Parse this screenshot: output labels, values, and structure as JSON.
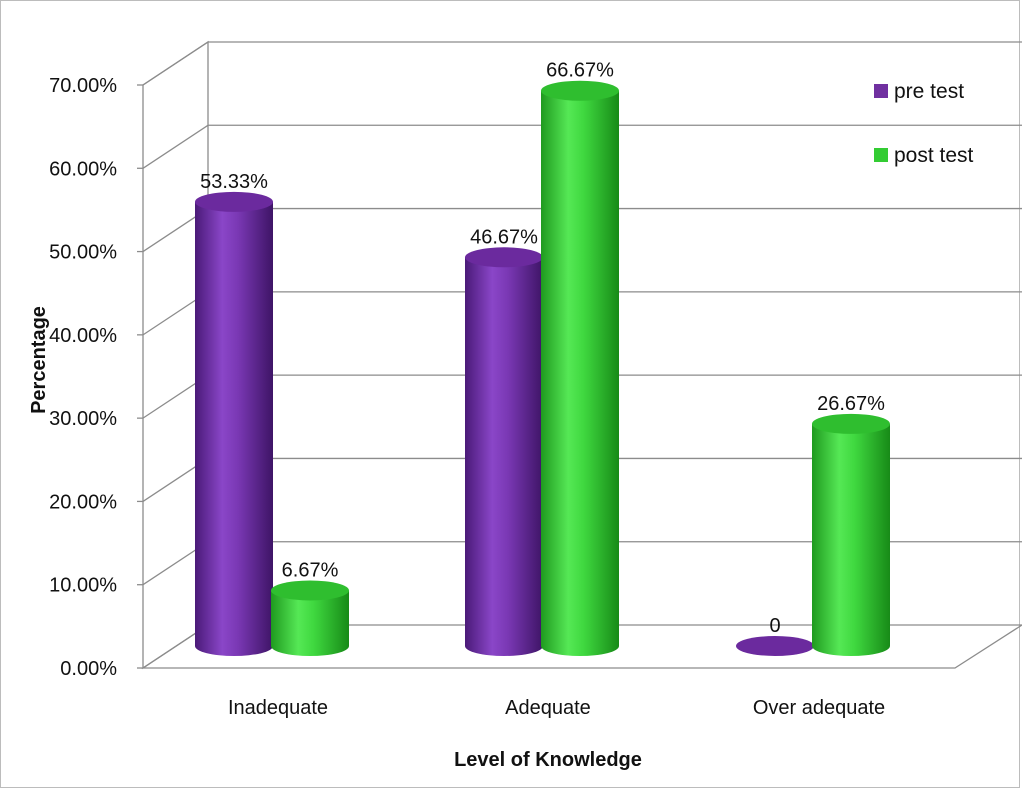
{
  "chart_data": {
    "type": "bar",
    "categories": [
      "Inadequate",
      "Adequate",
      "Over adequate"
    ],
    "series": [
      {
        "name": "pre test",
        "values": [
          53.33,
          46.67,
          0
        ],
        "labels": [
          "53.33%",
          "46.67%",
          "0"
        ],
        "color": "#7030a0"
      },
      {
        "name": "post test",
        "values": [
          6.67,
          66.67,
          26.67
        ],
        "labels": [
          "6.67%",
          "66.67%",
          "26.67%"
        ],
        "color": "#33cc33"
      }
    ],
    "title": "",
    "xlabel": "Level of Knowledge",
    "ylabel": "Percentage",
    "ylim": [
      0,
      70
    ],
    "yticks": [
      "0.00%",
      "10.00%",
      "20.00%",
      "30.00%",
      "40.00%",
      "50.00%",
      "60.00%",
      "70.00%"
    ],
    "grid": true,
    "legend_position": "top-right",
    "style": "3d-cylinder"
  }
}
